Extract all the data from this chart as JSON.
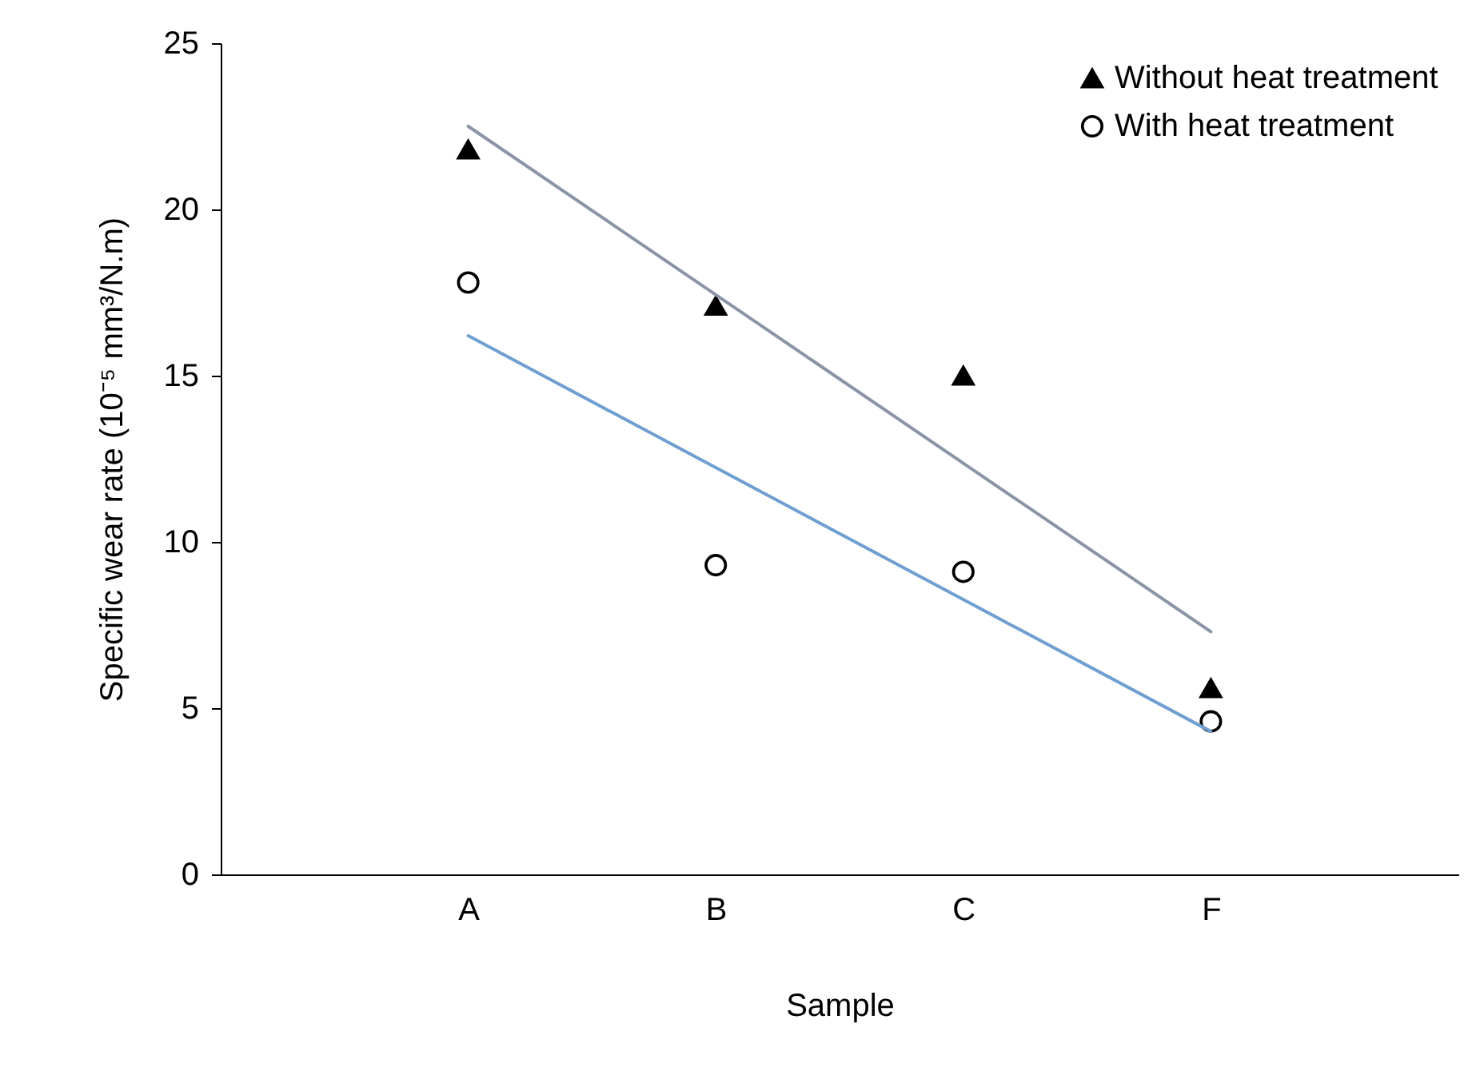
{
  "chart_data": {
    "type": "scatter",
    "xlabel": "Sample",
    "ylabel": "Specific wear rate (10⁻⁵ mm³/N.m)",
    "categories": [
      "A",
      "B",
      "C",
      "F"
    ],
    "series": [
      {
        "name": "Without heat treatment",
        "color": "#000000",
        "marker": "triangle",
        "values": [
          21.8,
          17.1,
          15.0,
          5.6
        ]
      },
      {
        "name": "With heat treatment",
        "color": "#000000",
        "marker": "circle",
        "values": [
          17.8,
          9.3,
          9.1,
          4.6
        ]
      },
      {
        "type": "line",
        "color": "#8a94a6",
        "x": [
          "A",
          "F"
        ],
        "values": [
          22.5,
          7.3
        ]
      },
      {
        "type": "line",
        "color": "#6f9fd0",
        "x": [
          "A",
          "F"
        ],
        "values": [
          16.2,
          4.3
        ]
      }
    ],
    "ylim": [
      0,
      25
    ],
    "yticks": [
      0,
      5,
      10,
      15,
      20,
      25
    ],
    "grid": false,
    "legend": "top right"
  }
}
